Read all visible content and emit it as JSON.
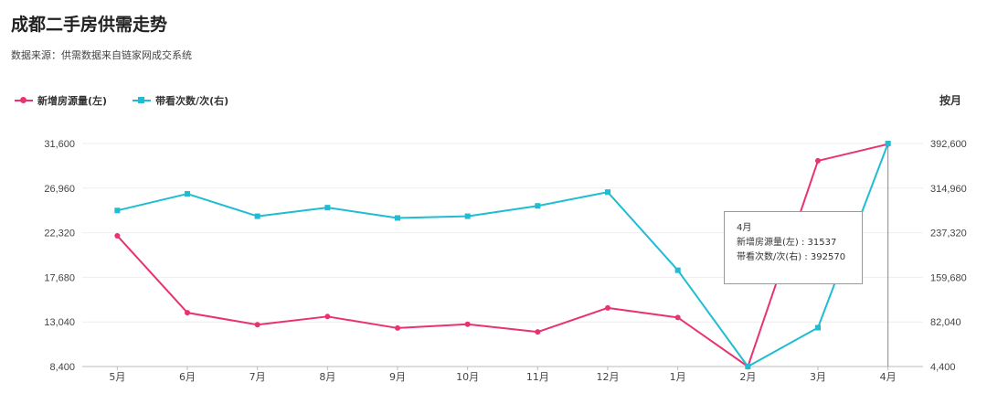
{
  "header": {
    "title": "成都二手房供需走势",
    "source": "数据来源：供需数据来自链家网成交系统"
  },
  "legend": [
    {
      "name": "新增房源量(左)",
      "color": "#e8336d",
      "marker": "circle"
    },
    {
      "name": "带看次数/次(右)",
      "color": "#1fbcd2",
      "marker": "square"
    }
  ],
  "period_label": "按月",
  "chart_data": {
    "type": "line",
    "categories": [
      "5月",
      "6月",
      "7月",
      "8月",
      "9月",
      "10月",
      "11月",
      "12月",
      "1月",
      "2月",
      "3月",
      "4月"
    ],
    "series": [
      {
        "name": "新增房源量(左)",
        "axis": "left",
        "color": "#e8336d",
        "marker": "circle",
        "values": [
          22000,
          14000,
          12750,
          13600,
          12400,
          12800,
          12000,
          14500,
          13500,
          8400,
          29800,
          31537
        ]
      },
      {
        "name": "带看次数/次(右)",
        "axis": "right",
        "color": "#1fbcd2",
        "marker": "square",
        "values": [
          276000,
          305000,
          266000,
          281000,
          263000,
          266000,
          284000,
          308000,
          172000,
          4400,
          72000,
          392570
        ]
      }
    ],
    "y_left": {
      "range": [
        8400,
        31600
      ],
      "ticks": [
        "8,400",
        "13,040",
        "17,680",
        "22,320",
        "26,960",
        "31,600"
      ]
    },
    "y_right": {
      "range": [
        4400,
        392600
      ],
      "ticks": [
        "4,400",
        "82,040",
        "159,680",
        "237,320",
        "314,960",
        "392,600"
      ]
    },
    "grid": true,
    "legend_position": "top-left"
  },
  "tooltip": {
    "title": "4月",
    "line1": "新增房源量(左) : 31537",
    "line2": "带看次数/次(右) : 392570"
  }
}
